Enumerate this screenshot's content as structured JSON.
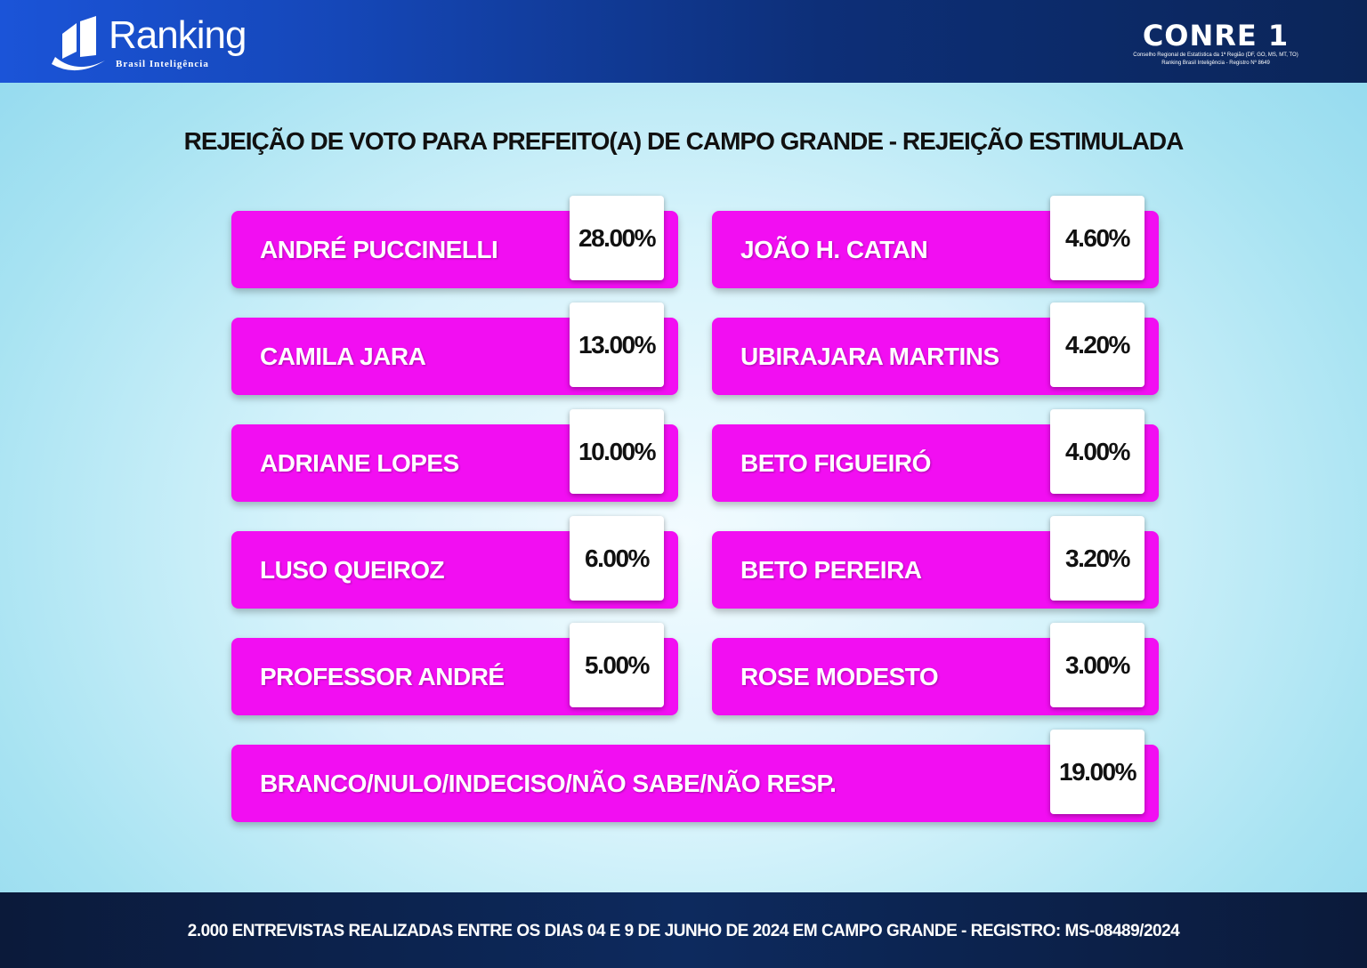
{
  "header": {
    "logo_word": "Ranking",
    "logo_sub": "Brasil Inteligência",
    "conre_title": "CONRE 1",
    "conre_line1": "Conselho Regional de Estatística da 1ª Região (DF, GO, MS, MT, TO)",
    "conre_line2": "Ranking Brasil Inteligência - Registro Nº 8649"
  },
  "colors": {
    "card": "#f20ef2",
    "header": "#0d2f78"
  },
  "chart_data": {
    "type": "table",
    "title": "REJEIÇÃO DE VOTO PARA PREFEITO(A) DE CAMPO GRANDE - REJEIÇÃO ESTIMULADA",
    "rows": [
      {
        "name": "ANDRÉ PUCCINELLI",
        "value": "28.00%"
      },
      {
        "name": "JOÃO H. CATAN",
        "value": "4.60%"
      },
      {
        "name": "CAMILA JARA",
        "value": "13.00%"
      },
      {
        "name": "UBIRAJARA MARTINS",
        "value": "4.20%"
      },
      {
        "name": "ADRIANE LOPES",
        "value": "10.00%"
      },
      {
        "name": "BETO FIGUEIRÓ",
        "value": "4.00%"
      },
      {
        "name": "LUSO QUEIROZ",
        "value": "6.00%"
      },
      {
        "name": "BETO PEREIRA",
        "value": "3.20%"
      },
      {
        "name": "PROFESSOR ANDRÉ",
        "value": "5.00%"
      },
      {
        "name": "ROSE MODESTO",
        "value": "3.00%"
      },
      {
        "name": "BRANCO/NULO/INDECISO/NÃO SABE/NÃO RESP.",
        "value": "19.00%"
      }
    ]
  },
  "footer": "2.000 ENTREVISTAS REALIZADAS ENTRE OS DIAS 04 E 9 DE JUNHO DE 2024 EM CAMPO GRANDE - REGISTRO: MS-08489/2024"
}
